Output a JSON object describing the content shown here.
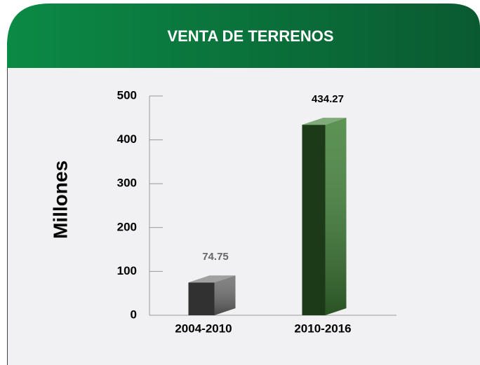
{
  "chart_data": {
    "type": "bar",
    "title": "VENTA DE TERRENOS",
    "ylabel": "Millones",
    "categories": [
      "2004-2010",
      "2010-2016"
    ],
    "values": [
      74.75,
      434.27
    ],
    "colors": [
      "#6e6e6e",
      "#3f7f36"
    ],
    "ylim": [
      0,
      500
    ],
    "yticks": [
      0,
      100,
      200,
      300,
      400,
      500
    ]
  }
}
